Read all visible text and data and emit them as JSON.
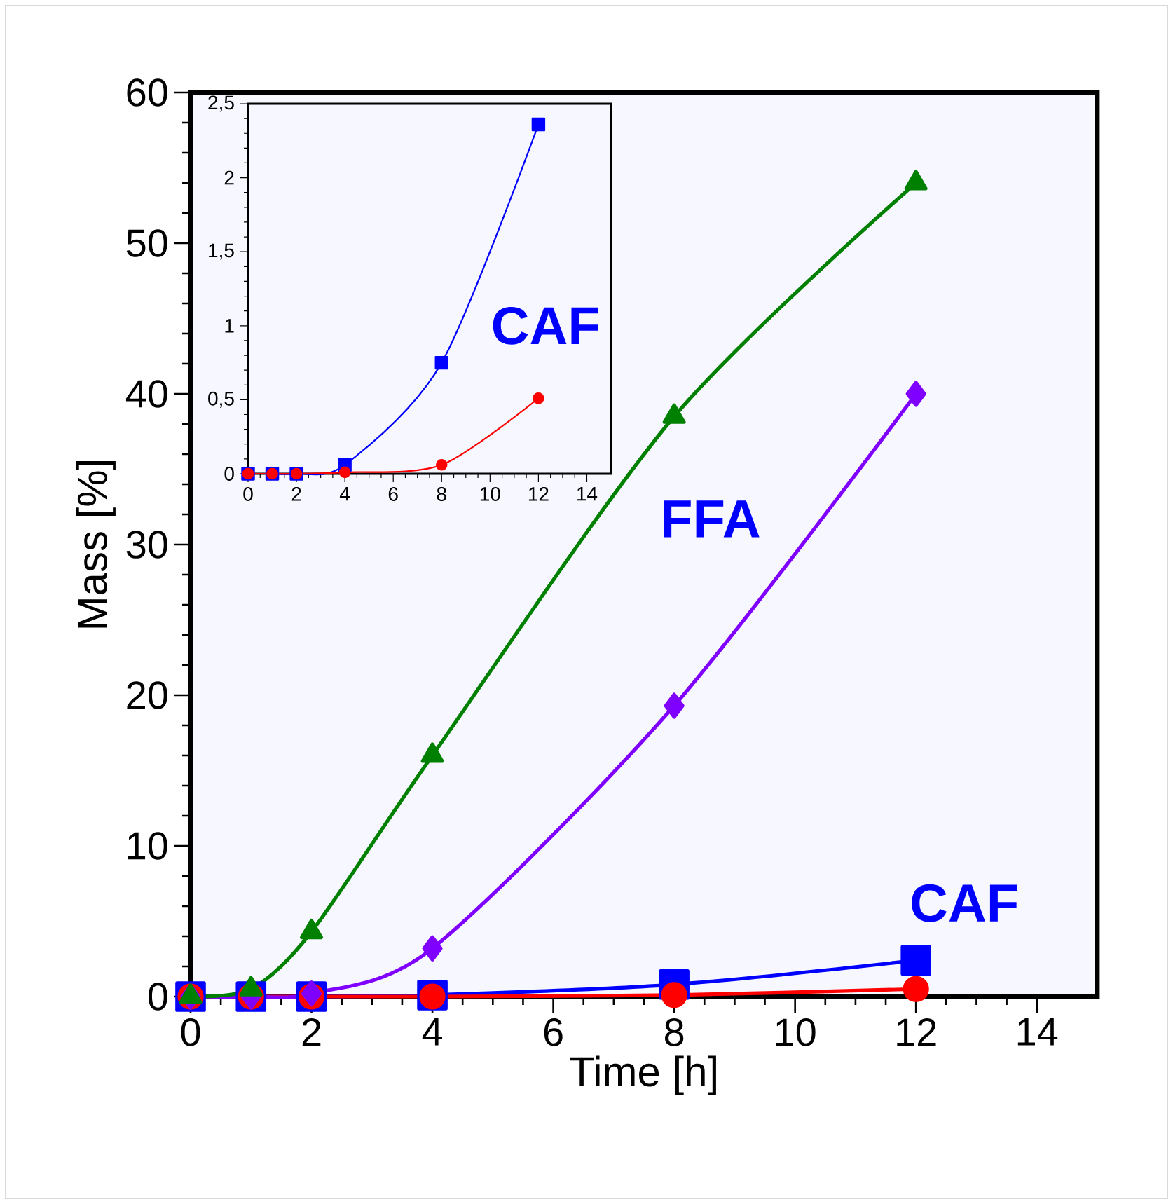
{
  "chart_data": [
    {
      "type": "line",
      "xlabel": "Time [h]",
      "ylabel": "Mass [%]",
      "xlim": [
        0,
        15
      ],
      "ylim": [
        0,
        60
      ],
      "xticks": [
        0,
        2,
        4,
        6,
        8,
        10,
        12,
        14
      ],
      "yticks": [
        0,
        10,
        20,
        30,
        40,
        50,
        60
      ],
      "grid": false,
      "x": [
        0,
        1,
        2,
        4,
        8,
        12
      ],
      "series": [
        {
          "color": "#0000ff",
          "marker": "square",
          "values": [
            0,
            0,
            0,
            0.1,
            0.8,
            2.4
          ]
        },
        {
          "color": "#ff0000",
          "marker": "circle",
          "values": [
            0,
            0,
            0,
            0,
            0.1,
            0.5
          ]
        },
        {
          "color": "#7f00ff",
          "marker": "diamond",
          "values": [
            0,
            0,
            0.2,
            3.2,
            19.3,
            40
          ]
        },
        {
          "color": "#008000",
          "marker": "triangle",
          "values": [
            0,
            0.5,
            4.3,
            16,
            38.5,
            54
          ]
        }
      ],
      "annotations": [
        "FFA",
        "CAF"
      ]
    },
    {
      "type": "line",
      "xlim": [
        0,
        15
      ],
      "ylim": [
        0,
        2.5
      ],
      "xticks": [
        0,
        2,
        4,
        6,
        8,
        10,
        12,
        14
      ],
      "yticks": [
        0,
        {
          "value": 0.5,
          "label": "0,5"
        },
        1,
        {
          "value": 1.5,
          "label": "1,5"
        },
        2,
        {
          "value": 2.5,
          "label": "2,5"
        }
      ],
      "grid": false,
      "x": [
        0,
        1,
        2,
        4,
        8,
        12
      ],
      "series": [
        {
          "color": "#0000ff",
          "marker": "square",
          "values": [
            0,
            0,
            0,
            0.06,
            0.75,
            2.36
          ]
        },
        {
          "color": "#ff0000",
          "marker": "circle",
          "values": [
            0,
            0,
            0,
            0.01,
            0.06,
            0.51
          ]
        }
      ],
      "annotations": [
        "CAF"
      ]
    }
  ]
}
